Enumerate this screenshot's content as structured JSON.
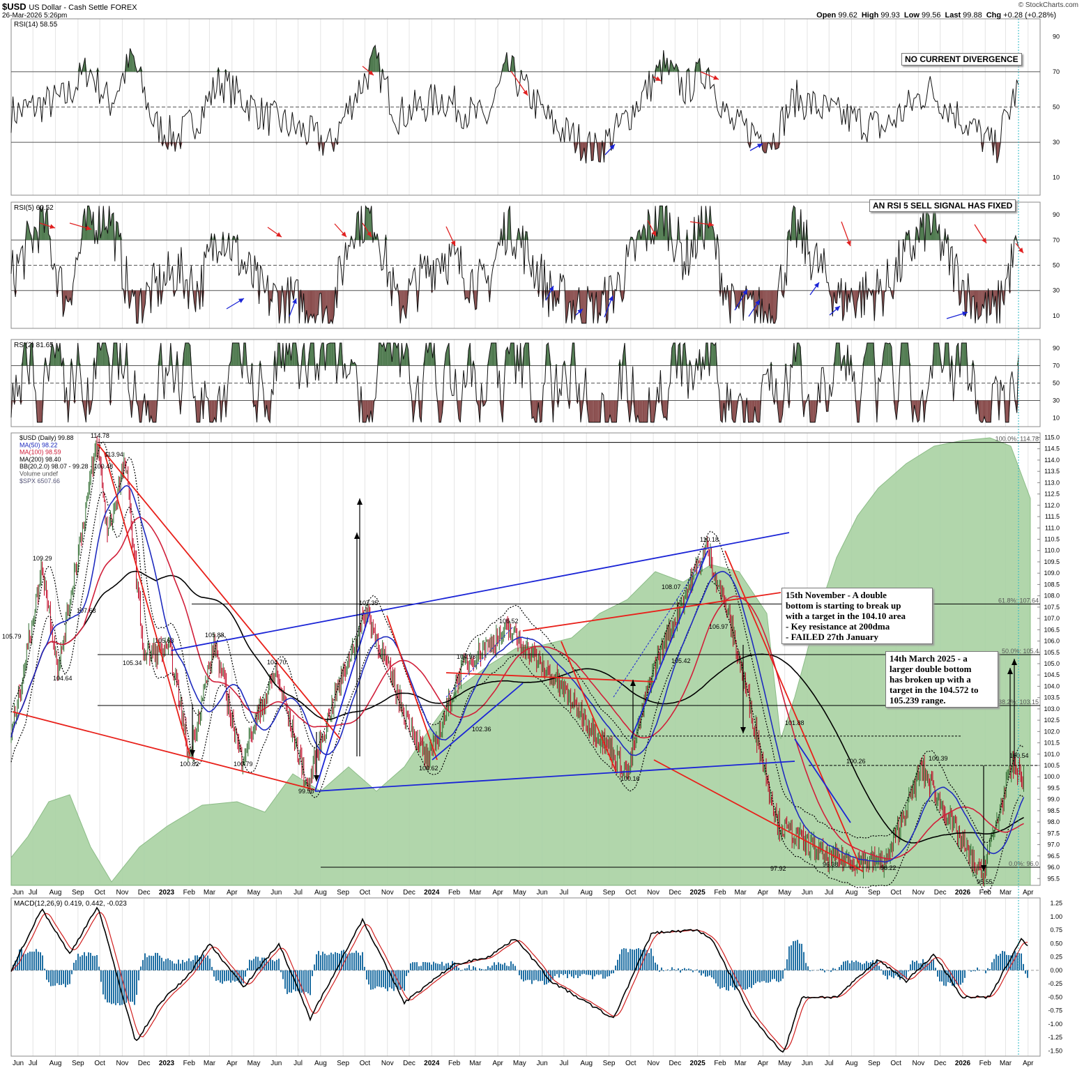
{
  "header": {
    "symbol": "$USD",
    "name": "US Dollar - Cash Settle",
    "exchange": "FOREX",
    "datetime": "26-Mar-2026 5:26pm",
    "watermark": "© StockCharts.com",
    "ohlc": [
      {
        "label": "Open",
        "value": "99.62"
      },
      {
        "label": "High",
        "value": "99.93"
      },
      {
        "label": "Low",
        "value": "99.56"
      },
      {
        "label": "Last",
        "value": "99.88"
      },
      {
        "label": "Chg",
        "value": "+0.28 (+0.28%)"
      }
    ]
  },
  "colors": {
    "up": "#2e6b2e",
    "down": "#c00020",
    "area": "#a9d2a3",
    "ma50": "#1f2bbf",
    "ma100": "#d11f3a",
    "ma200": "#000000",
    "trend_red": "#e8201a",
    "trend_blue": "#1a24d6",
    "macd_hist": "#1f6fa3",
    "ob_fill": "#4f7a4f",
    "os_fill": "#8a4e4e"
  },
  "annotations": {
    "rsi14_note": "NO CURRENT DIVERGENCE",
    "rsi5_note": "AN RSI 5 SELL SIGNAL HAS FIXED",
    "note1": [
      "15th November - A double",
      "bottom is starting to break up",
      "with a target in the 104.10 area",
      "- Key resistance at 200dma",
      "- FAILED 27th January"
    ],
    "note2": [
      "14th March 2025 - a",
      "larger double bottom",
      "has broken up with a",
      "target in the 104.572 to",
      "105.239 range."
    ]
  },
  "fib_labels": [
    "100.0%: 114.78",
    "61.8%: 107.64",
    "50.0%: 105.4",
    "38.2%: 103.15",
    "0.0%: 96.0"
  ],
  "chart_data": [
    {
      "type": "line",
      "panel": "RSI(14)",
      "legend": "RSI(14) 58.55",
      "yticks": [
        10,
        30,
        50,
        70,
        90
      ],
      "ylim": [
        0,
        100
      ],
      "levels": [
        30,
        50,
        70
      ],
      "x_dates": [
        "2022-06",
        "2022-08",
        "2022-09",
        "2022-10",
        "2022-11",
        "2022-12",
        "2023-01",
        "2023-02",
        "2023-03",
        "2023-05",
        "2023-07",
        "2023-08",
        "2023-09",
        "2023-10",
        "2023-11",
        "2024-01",
        "2024-03",
        "2024-04",
        "2024-06",
        "2024-08",
        "2024-09",
        "2024-10",
        "2024-11",
        "2024-12",
        "2025-01",
        "2025-02",
        "2025-04",
        "2025-05",
        "2025-07",
        "2025-09",
        "2025-11",
        "2026-01",
        "2026-02",
        "2026-03"
      ],
      "values": [
        48,
        55,
        72,
        52,
        78,
        40,
        32,
        45,
        65,
        45,
        35,
        28,
        55,
        76,
        45,
        55,
        42,
        72,
        40,
        25,
        38,
        55,
        73,
        60,
        72,
        40,
        32,
        55,
        45,
        38,
        60,
        38,
        26,
        58.55
      ]
    },
    {
      "type": "line",
      "panel": "RSI(5)",
      "legend": "RSI(5) 60.52",
      "yticks": [
        10,
        30,
        50,
        70,
        90
      ],
      "ylim": [
        0,
        100
      ],
      "levels": [
        30,
        50,
        70
      ],
      "x_dates": [
        "2022-06",
        "2022-07",
        "2022-08",
        "2022-09",
        "2022-10",
        "2022-11",
        "2023-01",
        "2023-02",
        "2023-03",
        "2023-05",
        "2023-07",
        "2023-08",
        "2023-09",
        "2023-10",
        "2023-11",
        "2024-01",
        "2024-03",
        "2024-04",
        "2024-06",
        "2024-08",
        "2024-09",
        "2024-10",
        "2024-11",
        "2024-12",
        "2025-01",
        "2025-02",
        "2025-04",
        "2025-05",
        "2025-07",
        "2025-09",
        "2025-11",
        "2026-01",
        "2026-02",
        "2026-03"
      ],
      "values": [
        55,
        88,
        20,
        85,
        92,
        15,
        45,
        30,
        80,
        25,
        18,
        10,
        85,
        88,
        15,
        60,
        30,
        86,
        25,
        12,
        35,
        70,
        92,
        55,
        88,
        15,
        12,
        80,
        22,
        30,
        85,
        20,
        10,
        60.52
      ]
    },
    {
      "type": "line",
      "panel": "RSI(2)",
      "legend": "RSI(2) 81.65",
      "yticks": [
        10,
        30,
        50,
        70,
        90
      ],
      "ylim": [
        0,
        100
      ],
      "levels": [
        30,
        50,
        70
      ],
      "values_note": "oscillates 5-95",
      "last": 81.65
    },
    {
      "type": "line",
      "panel": "price",
      "legend": [
        "$USD (Daily) 99.88",
        "MA(50) 98.22",
        "MA(100) 98.59",
        "MA(200) 98.40",
        "BB(20,2.0) 98.07 - 99.28 - 100.48",
        "Volume undef",
        "$SPX 6507.66"
      ],
      "yticks": [
        95.5,
        96.0,
        96.5,
        97.0,
        97.5,
        98.0,
        98.5,
        99.0,
        99.5,
        100.0,
        100.5,
        101.0,
        101.5,
        102.0,
        102.5,
        103.0,
        103.5,
        104.0,
        104.5,
        105.0,
        105.5,
        106.0,
        106.5,
        107.0,
        107.5,
        108.0,
        108.5,
        109.0,
        109.5,
        110.0,
        110.5,
        111.0,
        111.5,
        112.0,
        112.5,
        113.0,
        113.5,
        114.0,
        114.5,
        115.0
      ],
      "ylim": [
        95.2,
        115.2
      ],
      "x_dates": [
        "2022-06-01",
        "2022-07-14",
        "2022-08-05",
        "2022-08-20",
        "2022-09-27",
        "2022-10-12",
        "2022-11-05",
        "2022-12-01",
        "2023-01-06",
        "2023-02-01",
        "2023-03-08",
        "2023-04-14",
        "2023-05-31",
        "2023-07-14",
        "2023-08-20",
        "2023-10-03",
        "2023-11-20",
        "2023-12-27",
        "2024-02-14",
        "2024-04-16",
        "2024-06-26",
        "2024-09-27",
        "2024-10-30",
        "2025-01-13",
        "2025-02-14",
        "2025-04-21",
        "2025-07-01",
        "2025-09-17",
        "2025-11-05",
        "2026-01-27",
        "2026-03-10",
        "2026-03-26"
      ],
      "values": [
        101.8,
        109.29,
        104.64,
        107.68,
        114.78,
        110.8,
        113.94,
        105.34,
        105.63,
        100.82,
        105.88,
        100.79,
        104.7,
        99.58,
        103.5,
        107.35,
        103.2,
        100.62,
        104.98,
        106.52,
        104.0,
        100.16,
        104.6,
        110.18,
        106.97,
        97.92,
        96.38,
        96.22,
        100.39,
        95.55,
        100.54,
        99.88
      ],
      "price_labels": [
        "105.79",
        "109.29",
        "104.64",
        "107.68",
        "114.78",
        "113.94",
        "105.34",
        "105.63",
        "100.82",
        "105.88",
        "100.79",
        "104.70",
        "99.58",
        "107.35",
        "104.98",
        "102.36",
        "100.62",
        "106.52",
        "100.16",
        "105.42",
        "108.07",
        "110.18",
        "106.97",
        "101.88",
        "97.92",
        "96.38",
        "100.26",
        "96.22",
        "100.39",
        "95.55",
        "100.54"
      ],
      "x_axis_labels": [
        "Jun",
        "Jul",
        "Aug",
        "Sep",
        "Oct",
        "Nov",
        "Dec",
        "2023",
        "Feb",
        "Mar",
        "Apr",
        "May",
        "Jun",
        "Jul",
        "Aug",
        "Sep",
        "Oct",
        "Nov",
        "Dec",
        "2024",
        "Feb",
        "Mar",
        "Apr",
        "May",
        "Jun",
        "Jul",
        "Aug",
        "Sep",
        "Oct",
        "Nov",
        "Dec",
        "2025",
        "Feb",
        "Mar",
        "Apr",
        "May",
        "Jun",
        "Jul",
        "Aug",
        "Sep",
        "Oct",
        "Nov",
        "Dec",
        "2026",
        "Feb",
        "Mar",
        "Apr"
      ]
    },
    {
      "type": "line",
      "panel": "MACD",
      "legend": "MACD(12,26,9) 0.419, 0.442, -0.023",
      "yticks": [
        -1.5,
        -1.25,
        -1.0,
        -0.75,
        -0.5,
        -0.25,
        0.0,
        0.25,
        0.5,
        0.75,
        1.0,
        1.25
      ],
      "ylim": [
        -1.6,
        1.35
      ],
      "last": [
        0.419,
        0.442,
        -0.023
      ]
    }
  ]
}
